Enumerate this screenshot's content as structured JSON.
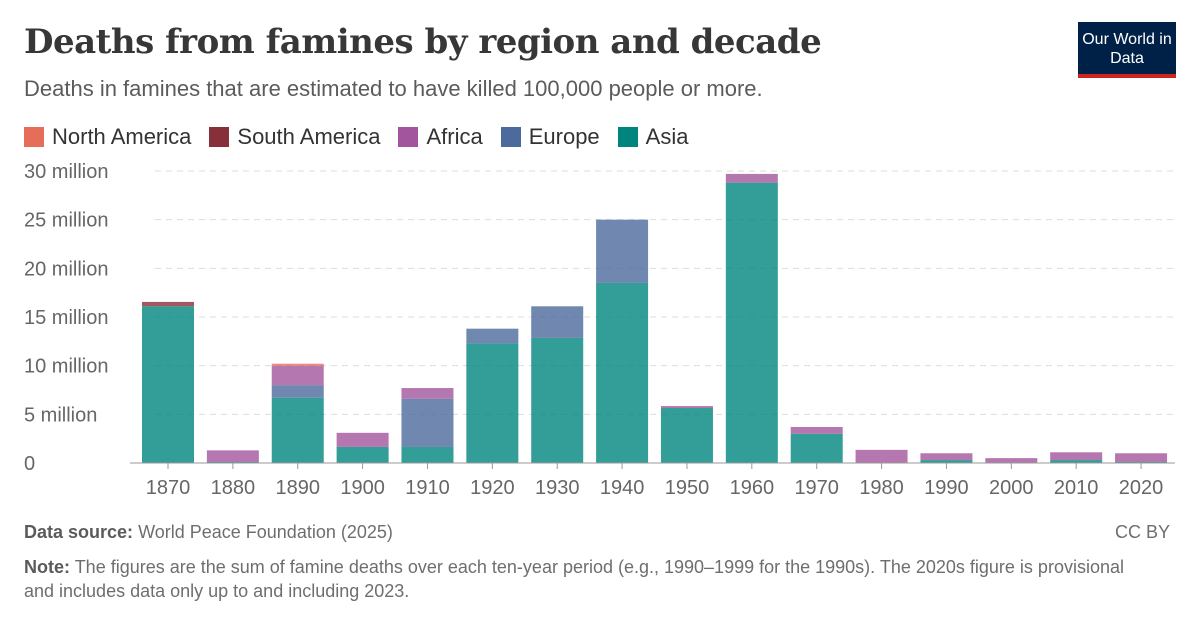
{
  "header": {
    "title": "Deaths from famines by region and decade",
    "subtitle": "Deaths in famines that are estimated to have killed 100,000 people or more.",
    "logo": "Our World in Data"
  },
  "footer": {
    "source_label": "Data source:",
    "source": "World Peace Foundation (2025)",
    "license": "CC BY",
    "note_label": "Note:",
    "note": "The figures are the sum of famine deaths over each ten-year period (e.g., 1990–1999 for the 1990s). The 2020s figure is provisional and includes data only up to and including 2023."
  },
  "chart_data": {
    "type": "bar",
    "stacked": true,
    "grid": true,
    "legend_position": "top-left",
    "categories": [
      "1870",
      "1880",
      "1890",
      "1900",
      "1910",
      "1920",
      "1930",
      "1940",
      "1950",
      "1960",
      "1970",
      "1980",
      "1990",
      "2000",
      "2010",
      "2020"
    ],
    "ylim": [
      0,
      30
    ],
    "yticks": [
      {
        "v": 0,
        "label": "0"
      },
      {
        "v": 5,
        "label": "5 million"
      },
      {
        "v": 10,
        "label": "10 million"
      },
      {
        "v": 15,
        "label": "15 million"
      },
      {
        "v": 20,
        "label": "20 million"
      },
      {
        "v": 25,
        "label": "25 million"
      },
      {
        "v": 30,
        "label": "30 million"
      }
    ],
    "series": [
      {
        "name": "Asia",
        "color": "#00847e",
        "values": [
          16.1,
          0.1,
          6.7,
          1.65,
          1.65,
          12.3,
          12.85,
          18.5,
          5.65,
          28.8,
          3.0,
          0,
          0.3,
          0,
          0.3,
          0.1
        ]
      },
      {
        "name": "Europe",
        "color": "#4c6a9c",
        "values": [
          0,
          0,
          1.3,
          0,
          4.95,
          1.5,
          3.25,
          6.5,
          0,
          0,
          0,
          0,
          0,
          0,
          0,
          0
        ]
      },
      {
        "name": "Africa",
        "color": "#a2559c",
        "values": [
          0,
          1.2,
          2.0,
          1.45,
          1.1,
          0,
          0,
          0,
          0.2,
          0.9,
          0.7,
          1.35,
          0.7,
          0.5,
          0.8,
          0.9
        ]
      },
      {
        "name": "South America",
        "color": "#883039",
        "values": [
          0.45,
          0,
          0,
          0,
          0,
          0,
          0,
          0,
          0,
          0,
          0,
          0,
          0,
          0,
          0,
          0
        ]
      },
      {
        "name": "North America",
        "color": "#e56e5a",
        "values": [
          0,
          0,
          0.2,
          0,
          0,
          0,
          0,
          0,
          0,
          0,
          0,
          0,
          0,
          0,
          0,
          0
        ]
      }
    ],
    "legend_order": [
      "North America",
      "South America",
      "Africa",
      "Europe",
      "Asia"
    ]
  }
}
